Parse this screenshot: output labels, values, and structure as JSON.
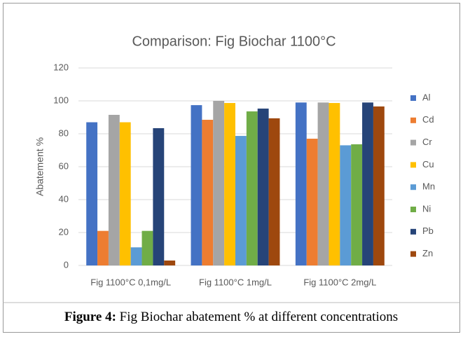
{
  "chart_data": {
    "type": "bar",
    "title": "Comparison: Fig Biochar 1100°C",
    "y_label": "Abatement %",
    "categories": [
      "Fig 1100°C 0,1mg/L",
      "Fig 1100°C 1mg/L",
      "Fig 1100°C 2mg/L"
    ],
    "series": [
      {
        "name": "Al",
        "color": "#4472c4",
        "values": [
          87,
          97.4,
          99
        ]
      },
      {
        "name": "Cd",
        "color": "#ed7d31",
        "values": [
          21,
          88.5,
          77
        ]
      },
      {
        "name": "Cr",
        "color": "#a5a5a5",
        "values": [
          91.5,
          100,
          99
        ]
      },
      {
        "name": "Cu",
        "color": "#ffc000",
        "values": [
          87,
          98.7,
          98.7
        ]
      },
      {
        "name": "Mn",
        "color": "#5b9bd5",
        "values": [
          11,
          78.7,
          73
        ]
      },
      {
        "name": "Ni",
        "color": "#70ad47",
        "values": [
          21,
          93.6,
          73.6
        ]
      },
      {
        "name": "Pb",
        "color": "#264478",
        "values": [
          83.4,
          95.3,
          99
        ]
      },
      {
        "name": "Zn",
        "color": "#9e480e",
        "values": [
          3,
          89.4,
          96.6
        ]
      }
    ],
    "ylim": [
      0,
      120
    ],
    "yticks": [
      0,
      20,
      40,
      60,
      80,
      100,
      120
    ],
    "grid": true,
    "legend": "right"
  },
  "caption": {
    "label": "Figure 4:",
    "text": "Fig Biochar abatement % at different concentrations"
  }
}
